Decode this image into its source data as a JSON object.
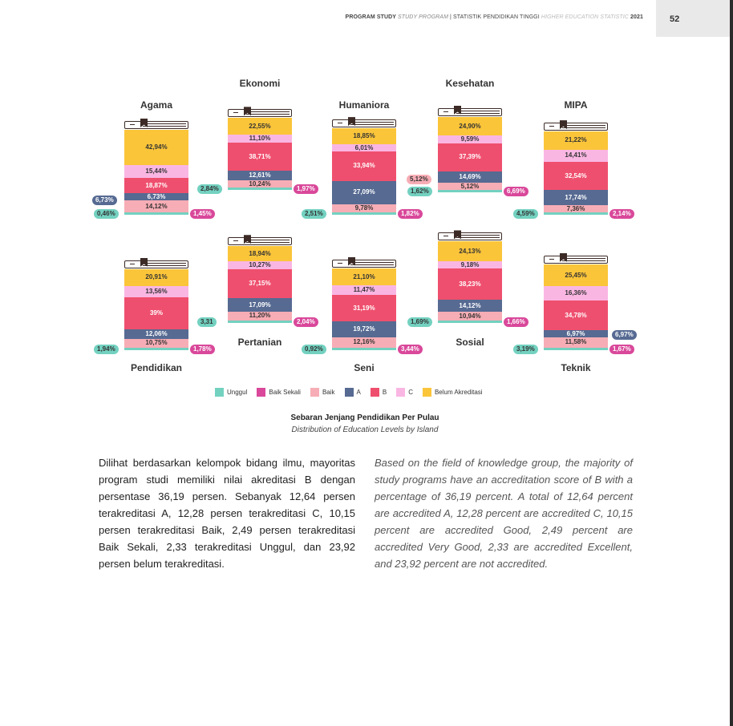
{
  "header": {
    "prefix": "PROGRAM STUDY ",
    "prefix_en": "STUDY PROGRAM",
    "sep": " | STATISTIK PENDIDIKAN TINGGI ",
    "title_en": "HIGHER EDUCATION STATISTIC",
    "year": " 2021",
    "page_number": "52"
  },
  "colors": {
    "Unggul": "#73d1c0",
    "Baik Sekali": "#d9489a",
    "Baik": "#f7adb5",
    "A": "#566a92",
    "B": "#ef4f6e",
    "C": "#fab6e3",
    "Belum Akreditasi": "#fbc53a"
  },
  "legend": [
    {
      "key": "Unggul",
      "label": "Unggul"
    },
    {
      "key": "Baik Sekali",
      "label": "Baik Sekali"
    },
    {
      "key": "Baik",
      "label": "Baik"
    },
    {
      "key": "A",
      "label": "A"
    },
    {
      "key": "B",
      "label": "B"
    },
    {
      "key": "C",
      "label": "C"
    },
    {
      "key": "Belum Akreditasi",
      "label": "Belum Akreditasi"
    }
  ],
  "chart_data": {
    "type": "bar",
    "stacked": true,
    "categories": [
      "Agama",
      "Ekonomi",
      "Humaniora",
      "Kesehatan",
      "MIPA",
      "Pendidikan",
      "Pertanian",
      "Seni",
      "Sosial",
      "Teknik"
    ],
    "series": [
      {
        "name": "Unggul",
        "values": [
          0.46,
          2.84,
          2.51,
          1.62,
          4.59,
          1.94,
          3.31,
          0.92,
          1.69,
          3.19
        ]
      },
      {
        "name": "Baik Sekali",
        "values": [
          1.45,
          1.97,
          1.82,
          6.69,
          2.14,
          1.78,
          2.04,
          3.44,
          1.66,
          1.67
        ]
      },
      {
        "name": "Baik",
        "values": [
          14.12,
          10.24,
          9.78,
          5.12,
          7.36,
          10.75,
          11.2,
          12.16,
          10.94,
          11.58
        ]
      },
      {
        "name": "A",
        "values": [
          6.73,
          12.61,
          27.09,
          14.69,
          17.74,
          12.06,
          17.09,
          19.72,
          14.12,
          6.97
        ]
      },
      {
        "name": "B",
        "values": [
          18.87,
          38.71,
          33.94,
          37.39,
          32.54,
          39,
          37.15,
          31.19,
          38.23,
          34.78
        ]
      },
      {
        "name": "C",
        "values": [
          15.44,
          11.1,
          6.01,
          9.59,
          14.41,
          13.56,
          10.27,
          11.47,
          9.18,
          16.36
        ]
      },
      {
        "name": "Belum Akreditasi",
        "values": [
          42.94,
          22.55,
          18.85,
          24.9,
          21.22,
          20.91,
          18.94,
          21.1,
          24.13,
          25.45
        ]
      }
    ]
  },
  "books": [
    {
      "name": "Agama",
      "label_pos": "top",
      "segments": [
        {
          "s": "Belum Akreditasi",
          "t": "42,94%"
        },
        {
          "s": "C",
          "t": "15,44%"
        },
        {
          "s": "B",
          "t": "18,87%"
        },
        {
          "s": "A",
          "t": "6,73%"
        },
        {
          "s": "Baik",
          "t": "14,12%"
        },
        {
          "s": "Baik Sekali",
          "t": "1,45%"
        },
        {
          "s": "Unggul",
          "t": "0,46%"
        }
      ]
    },
    {
      "name": "Ekonomi",
      "label_pos": "top",
      "segments": [
        {
          "s": "Belum Akreditasi",
          "t": "22,55%"
        },
        {
          "s": "C",
          "t": "11,10%"
        },
        {
          "s": "B",
          "t": "38,71%"
        },
        {
          "s": "A",
          "t": "12,61%"
        },
        {
          "s": "Baik",
          "t": "10,24%"
        },
        {
          "s": "Baik Sekali",
          "t": "1,97%"
        },
        {
          "s": "Unggul",
          "t": "2,84%"
        }
      ]
    },
    {
      "name": "Humaniora",
      "label_pos": "top",
      "segments": [
        {
          "s": "Belum Akreditasi",
          "t": "18,85%"
        },
        {
          "s": "C",
          "t": "6,01%"
        },
        {
          "s": "B",
          "t": "33,94%"
        },
        {
          "s": "A",
          "t": "27,09%"
        },
        {
          "s": "Baik",
          "t": "9,78%"
        },
        {
          "s": "Baik Sekali",
          "t": "1,82%"
        },
        {
          "s": "Unggul",
          "t": "2,51%"
        }
      ]
    },
    {
      "name": "Kesehatan",
      "label_pos": "top",
      "segments": [
        {
          "s": "Belum Akreditasi",
          "t": "24,90%"
        },
        {
          "s": "C",
          "t": "9,59%"
        },
        {
          "s": "B",
          "t": "37,39%"
        },
        {
          "s": "A",
          "t": "14,69%"
        },
        {
          "s": "Baik",
          "t": "5,12%"
        },
        {
          "s": "Baik Sekali",
          "t": "6,69%"
        },
        {
          "s": "Unggul",
          "t": "1,62%"
        }
      ]
    },
    {
      "name": "MIPA",
      "label_pos": "top",
      "segments": [
        {
          "s": "Belum Akreditasi",
          "t": "21,22%"
        },
        {
          "s": "C",
          "t": "14,41%"
        },
        {
          "s": "B",
          "t": "32,54%"
        },
        {
          "s": "A",
          "t": "17,74%"
        },
        {
          "s": "Baik",
          "t": "7,36%"
        },
        {
          "s": "Baik Sekali",
          "t": "2,14%"
        },
        {
          "s": "Unggul",
          "t": "4,59%"
        }
      ]
    },
    {
      "name": "Pendidikan",
      "label_pos": "bottom",
      "segments": [
        {
          "s": "Belum Akreditasi",
          "t": "20,91%"
        },
        {
          "s": "C",
          "t": "13,56%"
        },
        {
          "s": "B",
          "t": "39%"
        },
        {
          "s": "A",
          "t": "12,06%"
        },
        {
          "s": "Baik",
          "t": "10,75%"
        },
        {
          "s": "Baik Sekali",
          "t": "1,78%"
        },
        {
          "s": "Unggul",
          "t": "1,94%"
        }
      ]
    },
    {
      "name": "Pertanian",
      "label_pos": "bottom",
      "segments": [
        {
          "s": "Belum Akreditasi",
          "t": "18,94%"
        },
        {
          "s": "C",
          "t": "10,27%"
        },
        {
          "s": "B",
          "t": "37,15%"
        },
        {
          "s": "A",
          "t": "17,09%"
        },
        {
          "s": "Baik",
          "t": "11,20%"
        },
        {
          "s": "Baik Sekali",
          "t": "2,04%"
        },
        {
          "s": "Unggul",
          "t": "3,31"
        }
      ]
    },
    {
      "name": "Seni",
      "label_pos": "bottom",
      "segments": [
        {
          "s": "Belum Akreditasi",
          "t": "21,10%"
        },
        {
          "s": "C",
          "t": "11,47%"
        },
        {
          "s": "B",
          "t": "31,19%"
        },
        {
          "s": "A",
          "t": "19,72%"
        },
        {
          "s": "Baik",
          "t": "12,16%"
        },
        {
          "s": "Baik Sekali",
          "t": "3,44%"
        },
        {
          "s": "Unggul",
          "t": "0,92%"
        }
      ]
    },
    {
      "name": "Sosial",
      "label_pos": "bottom",
      "segments": [
        {
          "s": "Belum Akreditasi",
          "t": "24,13%"
        },
        {
          "s": "C",
          "t": "9,18%"
        },
        {
          "s": "B",
          "t": "38,23%"
        },
        {
          "s": "A",
          "t": "14,12%"
        },
        {
          "s": "Baik",
          "t": "10,94%"
        },
        {
          "s": "Baik Sekali",
          "t": "1,66%"
        },
        {
          "s": "Unggul",
          "t": "1,69%"
        }
      ]
    },
    {
      "name": "Teknik",
      "label_pos": "bottom",
      "segments": [
        {
          "s": "Belum Akreditasi",
          "t": "25,45%"
        },
        {
          "s": "C",
          "t": "16,36%"
        },
        {
          "s": "B",
          "t": "34,78%"
        },
        {
          "s": "A",
          "t": "6,97%"
        },
        {
          "s": "Baik",
          "t": "11,58%"
        },
        {
          "s": "Baik Sekali",
          "t": "1,67%"
        },
        {
          "s": "Unggul",
          "t": "3,19%"
        }
      ]
    }
  ],
  "caption": {
    "title": "Sebaran Jenjang Pendidikan Per Pulau",
    "subtitle": "Distribution of Education Levels by Island"
  },
  "body": {
    "id": "Dilihat berdasarkan kelompok bidang ilmu, mayoritas program studi memiliki nilai akreditasi B dengan persentase 36,19 persen.  Sebanyak 12,64 persen terakreditasi A, 12,28 persen terakreditasi C,  10,15 persen terakreditasi Baik, 2,49 persen terakreditasi Baik Sekali, 2,33 terakreditasi Unggul, dan 23,92 persen belum terakreditasi.",
    "en": "Based on the field of knowledge group, the majority of study programs have an accreditation score of B with a percentage of 36,19 percent. A total of 12,64 percent are accredited A, 12,28 percent are accredited C, 10,15 percent are accredited Good, 2,49 percent are accredited Very Good, 2,33 are accredited Excellent, and 23,92 percent are not accredited."
  }
}
